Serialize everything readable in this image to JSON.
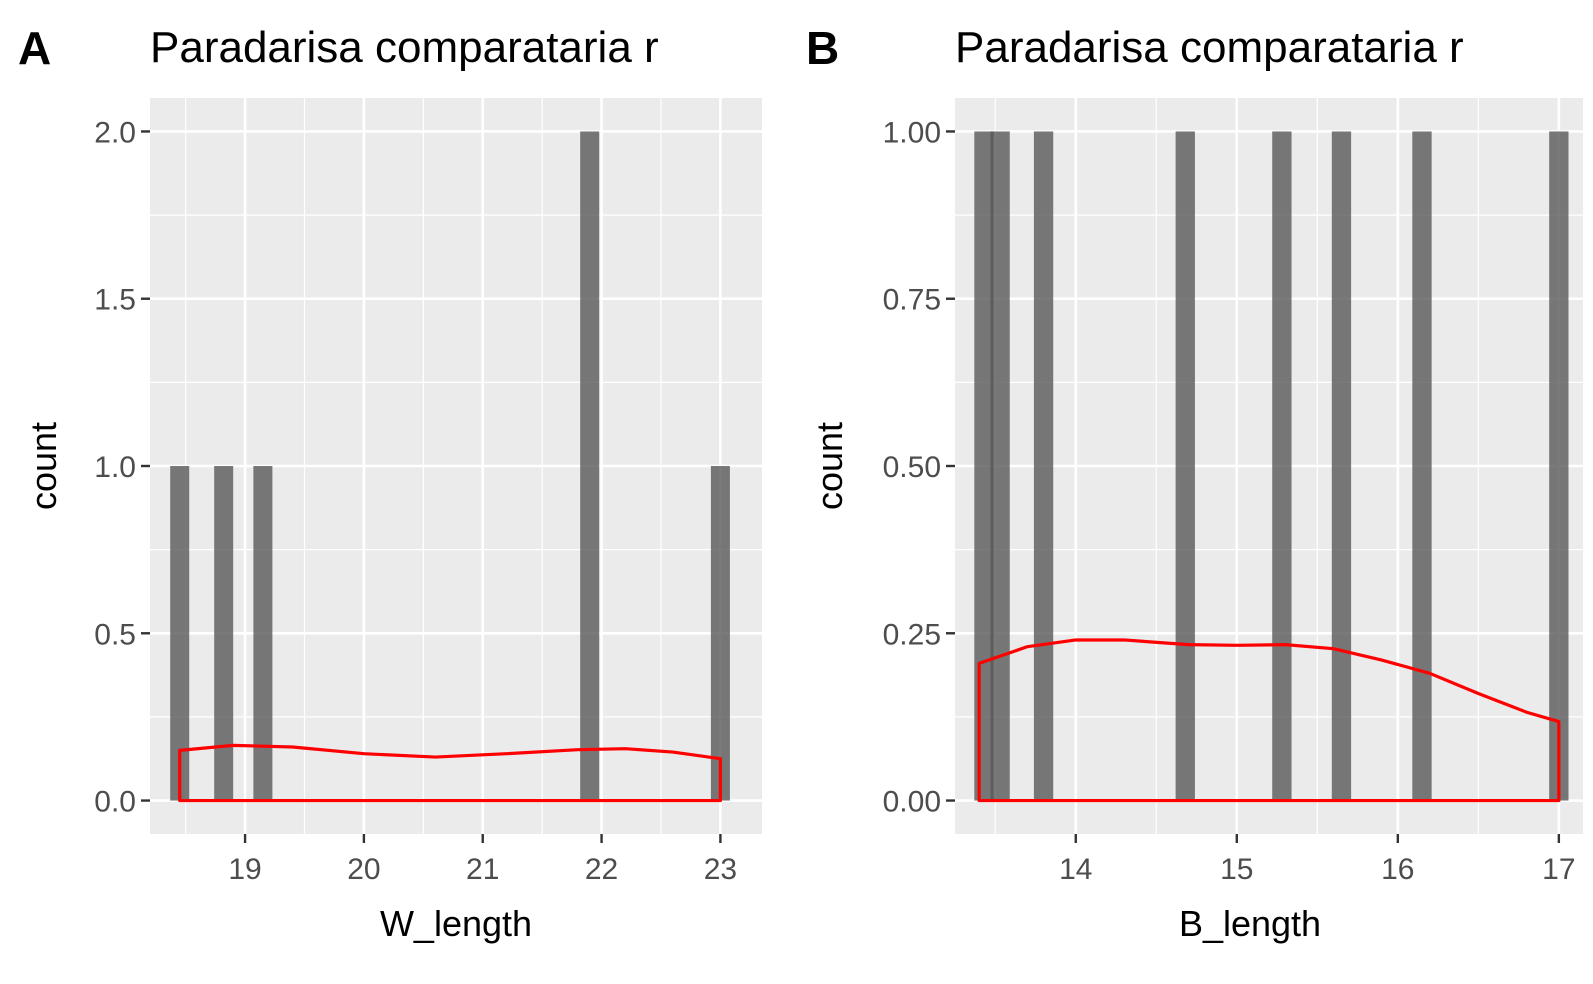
{
  "colors": {
    "panel_background": "#ebebeb",
    "grid_major": "#ffffff",
    "bar_fill": "#595959",
    "density_line": "#ff0000",
    "tick_text": "#4d4d4d"
  },
  "chart_data": [
    {
      "tag": "A",
      "type": "bar",
      "title": "Paradarisa comparataria r",
      "xlabel": "W_length",
      "ylabel": "count",
      "xlim": [
        18.2,
        23.35
      ],
      "ylim": [
        -0.1,
        2.1
      ],
      "x_ticks": [
        19,
        20,
        21,
        22,
        23
      ],
      "x_tick_labels": [
        "19",
        "20",
        "21",
        "22",
        "23"
      ],
      "y_ticks": [
        0,
        0.5,
        1,
        1.5,
        2
      ],
      "y_tick_labels": [
        "0.0",
        "0.5",
        "1.0",
        "1.5",
        "2.0"
      ],
      "bar_width": 0.16,
      "bars": [
        {
          "x": 18.45,
          "count": 1
        },
        {
          "x": 18.82,
          "count": 1
        },
        {
          "x": 19.15,
          "count": 1
        },
        {
          "x": 21.9,
          "count": 2
        },
        {
          "x": 23.0,
          "count": 1
        }
      ],
      "density": {
        "x_range": [
          18.45,
          23.0
        ],
        "points": [
          [
            18.45,
            0.15
          ],
          [
            18.9,
            0.165
          ],
          [
            19.4,
            0.16
          ],
          [
            20.0,
            0.14
          ],
          [
            20.6,
            0.13
          ],
          [
            21.2,
            0.14
          ],
          [
            21.8,
            0.152
          ],
          [
            22.2,
            0.155
          ],
          [
            22.6,
            0.145
          ],
          [
            23.0,
            0.125
          ]
        ]
      },
      "grid": true,
      "legend": "none"
    },
    {
      "tag": "B",
      "type": "bar",
      "title": "Paradarisa comparataria r",
      "xlabel": "B_length",
      "ylabel": "count",
      "xlim": [
        13.25,
        17.15
      ],
      "ylim": [
        -0.05,
        1.05
      ],
      "x_ticks": [
        14,
        15,
        16,
        17
      ],
      "x_tick_labels": [
        "14",
        "15",
        "16",
        "17"
      ],
      "y_ticks": [
        0,
        0.25,
        0.5,
        0.75,
        1
      ],
      "y_tick_labels": [
        "0.00",
        "0.25",
        "0.50",
        "0.75",
        "1.00"
      ],
      "bar_width": 0.12,
      "bars": [
        {
          "x": 13.43,
          "count": 1
        },
        {
          "x": 13.53,
          "count": 1
        },
        {
          "x": 13.8,
          "count": 1
        },
        {
          "x": 14.68,
          "count": 1
        },
        {
          "x": 15.28,
          "count": 1
        },
        {
          "x": 15.65,
          "count": 1
        },
        {
          "x": 16.15,
          "count": 1
        },
        {
          "x": 17.0,
          "count": 1
        }
      ],
      "density": {
        "x_range": [
          13.4,
          17.0
        ],
        "points": [
          [
            13.4,
            0.205
          ],
          [
            13.7,
            0.23
          ],
          [
            14.0,
            0.24
          ],
          [
            14.3,
            0.24
          ],
          [
            14.7,
            0.233
          ],
          [
            15.0,
            0.232
          ],
          [
            15.3,
            0.233
          ],
          [
            15.6,
            0.227
          ],
          [
            15.9,
            0.21
          ],
          [
            16.2,
            0.19
          ],
          [
            16.5,
            0.16
          ],
          [
            16.8,
            0.132
          ],
          [
            17.0,
            0.118
          ]
        ]
      },
      "grid": true,
      "legend": "none"
    }
  ]
}
